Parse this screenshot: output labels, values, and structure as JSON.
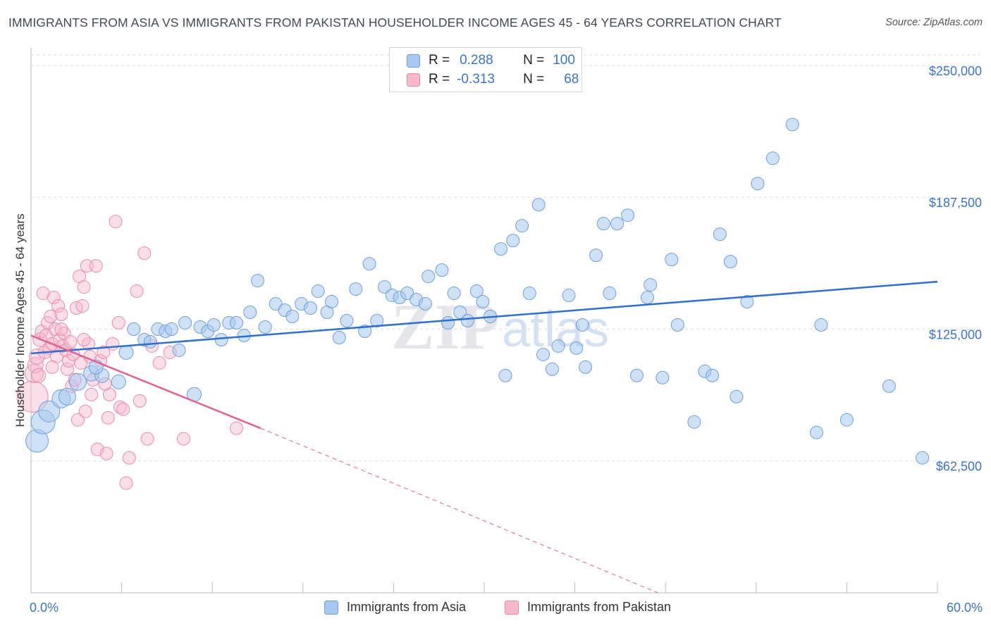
{
  "header": {
    "title": "IMMIGRANTS FROM ASIA VS IMMIGRANTS FROM PAKISTAN HOUSEHOLDER INCOME AGES 45 - 64 YEARS CORRELATION CHART",
    "source": "Source: ZipAtlas.com"
  },
  "legend_top": {
    "rows": [
      {
        "r_label": "R =",
        "r_value": "0.288",
        "n_label": "N =",
        "n_value": "100"
      },
      {
        "r_label": "R =",
        "r_value": "-0.313",
        "n_label": "N =",
        "n_value": "68"
      }
    ]
  },
  "watermark": {
    "zip": "ZIP",
    "atlas": "atlas"
  },
  "colors": {
    "asia_fill": "#a8c8f0",
    "asia_stroke": "#6f9fdb",
    "asia_line": "#2f6fcf",
    "pak_fill": "#f7b8cc",
    "pak_stroke": "#ec8aaa",
    "pak_line": "#e36090",
    "axis_label": "#3a74c9",
    "grid": "#dddddd"
  },
  "chart_data": {
    "type": "scatter",
    "title": "IMMIGRANTS FROM ASIA VS IMMIGRANTS FROM PAKISTAN HOUSEHOLDER INCOME AGES 45 - 64 YEARS CORRELATION CHART",
    "xlabel": "",
    "ylabel": "Householder Income Ages 45 - 64 years",
    "xlim": [
      0,
      60
    ],
    "ylim": [
      0,
      255000
    ],
    "x_tick_labels": [
      "0.0%",
      "60.0%"
    ],
    "y_ticks": [
      62500,
      125000,
      187500,
      250000
    ],
    "y_tick_labels": [
      "$62,500",
      "$125,000",
      "$187,500",
      "$250,000"
    ],
    "grid": "horizontal dashed",
    "legend_position": "top-center and bottom",
    "series": [
      {
        "name": "Immigrants from Asia",
        "r": 0.288,
        "n": 100,
        "trend": {
          "x": [
            0,
            60
          ],
          "y": [
            113500,
            147500
          ],
          "dashed_extension": false
        },
        "points": [
          {
            "x": 0.4,
            "y": 72000,
            "s": 16
          },
          {
            "x": 0.8,
            "y": 81000,
            "s": 17
          },
          {
            "x": 1.2,
            "y": 86000,
            "s": 15
          },
          {
            "x": 2.0,
            "y": 92000,
            "s": 13
          },
          {
            "x": 2.4,
            "y": 93000,
            "s": 12
          },
          {
            "x": 3.1,
            "y": 100000,
            "s": 12
          },
          {
            "x": 4.0,
            "y": 104000,
            "s": 11
          },
          {
            "x": 4.7,
            "y": 103000,
            "s": 10
          },
          {
            "x": 4.3,
            "y": 107000,
            "s": 10
          },
          {
            "x": 5.8,
            "y": 100000,
            "s": 10
          },
          {
            "x": 6.3,
            "y": 114000,
            "s": 10
          },
          {
            "x": 6.8,
            "y": 125000,
            "s": 9
          },
          {
            "x": 7.5,
            "y": 120000,
            "s": 9
          },
          {
            "x": 7.9,
            "y": 119000,
            "s": 9
          },
          {
            "x": 8.4,
            "y": 125000,
            "s": 9
          },
          {
            "x": 8.9,
            "y": 124000,
            "s": 9
          },
          {
            "x": 9.3,
            "y": 125000,
            "s": 9
          },
          {
            "x": 9.8,
            "y": 115000,
            "s": 9
          },
          {
            "x": 10.2,
            "y": 128000,
            "s": 9
          },
          {
            "x": 10.8,
            "y": 94000,
            "s": 10
          },
          {
            "x": 11.2,
            "y": 126000,
            "s": 9
          },
          {
            "x": 11.7,
            "y": 124000,
            "s": 9
          },
          {
            "x": 12.1,
            "y": 127000,
            "s": 9
          },
          {
            "x": 12.6,
            "y": 120000,
            "s": 9
          },
          {
            "x": 13.1,
            "y": 128000,
            "s": 9
          },
          {
            "x": 13.6,
            "y": 128000,
            "s": 9
          },
          {
            "x": 14.1,
            "y": 122000,
            "s": 9
          },
          {
            "x": 14.5,
            "y": 133000,
            "s": 9
          },
          {
            "x": 15.0,
            "y": 148000,
            "s": 9
          },
          {
            "x": 15.5,
            "y": 126000,
            "s": 9
          },
          {
            "x": 16.2,
            "y": 137000,
            "s": 9
          },
          {
            "x": 16.8,
            "y": 134000,
            "s": 9
          },
          {
            "x": 17.3,
            "y": 131000,
            "s": 9
          },
          {
            "x": 17.9,
            "y": 137000,
            "s": 9
          },
          {
            "x": 18.5,
            "y": 135000,
            "s": 9
          },
          {
            "x": 19.0,
            "y": 143000,
            "s": 9
          },
          {
            "x": 19.6,
            "y": 133000,
            "s": 9
          },
          {
            "x": 19.9,
            "y": 138000,
            "s": 9
          },
          {
            "x": 20.4,
            "y": 121000,
            "s": 9
          },
          {
            "x": 20.9,
            "y": 129000,
            "s": 9
          },
          {
            "x": 21.5,
            "y": 144000,
            "s": 9
          },
          {
            "x": 22.1,
            "y": 124000,
            "s": 9
          },
          {
            "x": 22.4,
            "y": 156000,
            "s": 9
          },
          {
            "x": 22.9,
            "y": 129000,
            "s": 9
          },
          {
            "x": 23.4,
            "y": 145000,
            "s": 9
          },
          {
            "x": 23.9,
            "y": 141000,
            "s": 9
          },
          {
            "x": 24.4,
            "y": 140000,
            "s": 9
          },
          {
            "x": 24.9,
            "y": 142000,
            "s": 9
          },
          {
            "x": 25.5,
            "y": 139000,
            "s": 9
          },
          {
            "x": 26.1,
            "y": 137000,
            "s": 9
          },
          {
            "x": 26.3,
            "y": 150000,
            "s": 9
          },
          {
            "x": 27.2,
            "y": 153000,
            "s": 9
          },
          {
            "x": 27.6,
            "y": 128000,
            "s": 9
          },
          {
            "x": 28.0,
            "y": 142000,
            "s": 9
          },
          {
            "x": 28.4,
            "y": 133000,
            "s": 9
          },
          {
            "x": 28.9,
            "y": 129000,
            "s": 9
          },
          {
            "x": 29.5,
            "y": 143000,
            "s": 9
          },
          {
            "x": 29.9,
            "y": 138000,
            "s": 9
          },
          {
            "x": 30.4,
            "y": 131000,
            "s": 9
          },
          {
            "x": 31.1,
            "y": 163000,
            "s": 9
          },
          {
            "x": 31.4,
            "y": 103000,
            "s": 9
          },
          {
            "x": 31.9,
            "y": 167000,
            "s": 9
          },
          {
            "x": 32.5,
            "y": 174000,
            "s": 9
          },
          {
            "x": 33.0,
            "y": 142000,
            "s": 9
          },
          {
            "x": 33.6,
            "y": 184000,
            "s": 9
          },
          {
            "x": 33.9,
            "y": 113000,
            "s": 9
          },
          {
            "x": 34.5,
            "y": 106000,
            "s": 9
          },
          {
            "x": 34.9,
            "y": 117000,
            "s": 9
          },
          {
            "x": 35.6,
            "y": 141000,
            "s": 9
          },
          {
            "x": 36.1,
            "y": 116000,
            "s": 9
          },
          {
            "x": 36.5,
            "y": 127000,
            "s": 9
          },
          {
            "x": 36.7,
            "y": 107000,
            "s": 9
          },
          {
            "x": 37.4,
            "y": 160000,
            "s": 9
          },
          {
            "x": 37.9,
            "y": 175000,
            "s": 9
          },
          {
            "x": 38.3,
            "y": 142000,
            "s": 9
          },
          {
            "x": 38.8,
            "y": 175000,
            "s": 9
          },
          {
            "x": 39.5,
            "y": 179000,
            "s": 9
          },
          {
            "x": 40.1,
            "y": 103000,
            "s": 9
          },
          {
            "x": 40.8,
            "y": 140000,
            "s": 9
          },
          {
            "x": 41.0,
            "y": 146000,
            "s": 9
          },
          {
            "x": 41.8,
            "y": 102000,
            "s": 9
          },
          {
            "x": 42.4,
            "y": 158000,
            "s": 9
          },
          {
            "x": 42.8,
            "y": 127000,
            "s": 9
          },
          {
            "x": 43.9,
            "y": 81000,
            "s": 9
          },
          {
            "x": 44.6,
            "y": 105000,
            "s": 9
          },
          {
            "x": 45.1,
            "y": 103000,
            "s": 9
          },
          {
            "x": 45.6,
            "y": 170000,
            "s": 9
          },
          {
            "x": 46.3,
            "y": 157000,
            "s": 9
          },
          {
            "x": 46.7,
            "y": 93000,
            "s": 9
          },
          {
            "x": 47.4,
            "y": 138000,
            "s": 9
          },
          {
            "x": 48.1,
            "y": 194000,
            "s": 9
          },
          {
            "x": 49.1,
            "y": 206000,
            "s": 9
          },
          {
            "x": 50.4,
            "y": 222000,
            "s": 9
          },
          {
            "x": 52.0,
            "y": 76000,
            "s": 9
          },
          {
            "x": 52.3,
            "y": 127000,
            "s": 9
          },
          {
            "x": 54.0,
            "y": 82000,
            "s": 9
          },
          {
            "x": 56.8,
            "y": 98000,
            "s": 9
          },
          {
            "x": 59.0,
            "y": 64000,
            "s": 9
          }
        ]
      },
      {
        "name": "Immigrants from Pakistan",
        "r": -0.313,
        "n": 68,
        "trend": {
          "x": [
            0,
            15.2
          ],
          "y": [
            122000,
            78000
          ],
          "dashed_extension": {
            "x": [
              15.2,
              41.5
            ],
            "y": [
              78000,
              0
            ]
          }
        },
        "points": [
          {
            "x": 0.1,
            "y": 93000,
            "s": 22
          },
          {
            "x": 0.2,
            "y": 104000,
            "s": 13
          },
          {
            "x": 0.3,
            "y": 108000,
            "s": 11
          },
          {
            "x": 0.4,
            "y": 112000,
            "s": 11
          },
          {
            "x": 0.5,
            "y": 103000,
            "s": 10
          },
          {
            "x": 0.6,
            "y": 120000,
            "s": 10
          },
          {
            "x": 0.7,
            "y": 124000,
            "s": 9
          },
          {
            "x": 0.8,
            "y": 142000,
            "s": 9
          },
          {
            "x": 0.9,
            "y": 114000,
            "s": 9
          },
          {
            "x": 1.0,
            "y": 122000,
            "s": 9
          },
          {
            "x": 1.1,
            "y": 128000,
            "s": 9
          },
          {
            "x": 1.2,
            "y": 116000,
            "s": 9
          },
          {
            "x": 1.3,
            "y": 131000,
            "s": 9
          },
          {
            "x": 1.4,
            "y": 118000,
            "s": 9
          },
          {
            "x": 1.5,
            "y": 140000,
            "s": 9
          },
          {
            "x": 1.6,
            "y": 125000,
            "s": 9
          },
          {
            "x": 1.7,
            "y": 112000,
            "s": 9
          },
          {
            "x": 1.8,
            "y": 136000,
            "s": 9
          },
          {
            "x": 1.9,
            "y": 120000,
            "s": 9
          },
          {
            "x": 2.0,
            "y": 132000,
            "s": 9
          },
          {
            "x": 2.1,
            "y": 117000,
            "s": 9
          },
          {
            "x": 2.2,
            "y": 123000,
            "s": 9
          },
          {
            "x": 2.3,
            "y": 115000,
            "s": 9
          },
          {
            "x": 2.4,
            "y": 106000,
            "s": 9
          },
          {
            "x": 2.5,
            "y": 110000,
            "s": 9
          },
          {
            "x": 2.6,
            "y": 119000,
            "s": 9
          },
          {
            "x": 2.7,
            "y": 98000,
            "s": 9
          },
          {
            "x": 2.8,
            "y": 113000,
            "s": 9
          },
          {
            "x": 2.9,
            "y": 101000,
            "s": 9
          },
          {
            "x": 3.0,
            "y": 135000,
            "s": 9
          },
          {
            "x": 3.1,
            "y": 82000,
            "s": 9
          },
          {
            "x": 3.2,
            "y": 150000,
            "s": 9
          },
          {
            "x": 3.3,
            "y": 109000,
            "s": 9
          },
          {
            "x": 3.4,
            "y": 136000,
            "s": 9
          },
          {
            "x": 3.5,
            "y": 145000,
            "s": 9
          },
          {
            "x": 3.6,
            "y": 86000,
            "s": 9
          },
          {
            "x": 3.7,
            "y": 155000,
            "s": 9
          },
          {
            "x": 3.8,
            "y": 118000,
            "s": 9
          },
          {
            "x": 3.9,
            "y": 112000,
            "s": 9
          },
          {
            "x": 4.0,
            "y": 94000,
            "s": 9
          },
          {
            "x": 4.1,
            "y": 101000,
            "s": 9
          },
          {
            "x": 4.3,
            "y": 155000,
            "s": 9
          },
          {
            "x": 4.4,
            "y": 68000,
            "s": 9
          },
          {
            "x": 4.6,
            "y": 110000,
            "s": 9
          },
          {
            "x": 4.8,
            "y": 114000,
            "s": 9
          },
          {
            "x": 5.0,
            "y": 66000,
            "s": 9
          },
          {
            "x": 5.1,
            "y": 83000,
            "s": 9
          },
          {
            "x": 5.2,
            "y": 94000,
            "s": 9
          },
          {
            "x": 5.4,
            "y": 118000,
            "s": 9
          },
          {
            "x": 5.6,
            "y": 176000,
            "s": 9
          },
          {
            "x": 5.8,
            "y": 128000,
            "s": 9
          },
          {
            "x": 5.9,
            "y": 88000,
            "s": 9
          },
          {
            "x": 6.1,
            "y": 87000,
            "s": 9
          },
          {
            "x": 6.3,
            "y": 52000,
            "s": 9
          },
          {
            "x": 6.5,
            "y": 64000,
            "s": 9
          },
          {
            "x": 7.0,
            "y": 143000,
            "s": 9
          },
          {
            "x": 7.2,
            "y": 91000,
            "s": 9
          },
          {
            "x": 7.5,
            "y": 161000,
            "s": 9
          },
          {
            "x": 7.7,
            "y": 73000,
            "s": 9
          },
          {
            "x": 8.0,
            "y": 117000,
            "s": 9
          },
          {
            "x": 8.5,
            "y": 109000,
            "s": 9
          },
          {
            "x": 9.2,
            "y": 114000,
            "s": 9
          },
          {
            "x": 10.1,
            "y": 73000,
            "s": 9
          },
          {
            "x": 13.6,
            "y": 78000,
            "s": 9
          },
          {
            "x": 1.4,
            "y": 107000,
            "s": 9
          },
          {
            "x": 2.0,
            "y": 125000,
            "s": 9
          },
          {
            "x": 3.5,
            "y": 120000,
            "s": 9
          },
          {
            "x": 4.9,
            "y": 99000,
            "s": 9
          }
        ]
      }
    ]
  },
  "legend_bottom": {
    "items": [
      {
        "label": "Immigrants from Asia"
      },
      {
        "label": "Immigrants from Pakistan"
      }
    ]
  }
}
